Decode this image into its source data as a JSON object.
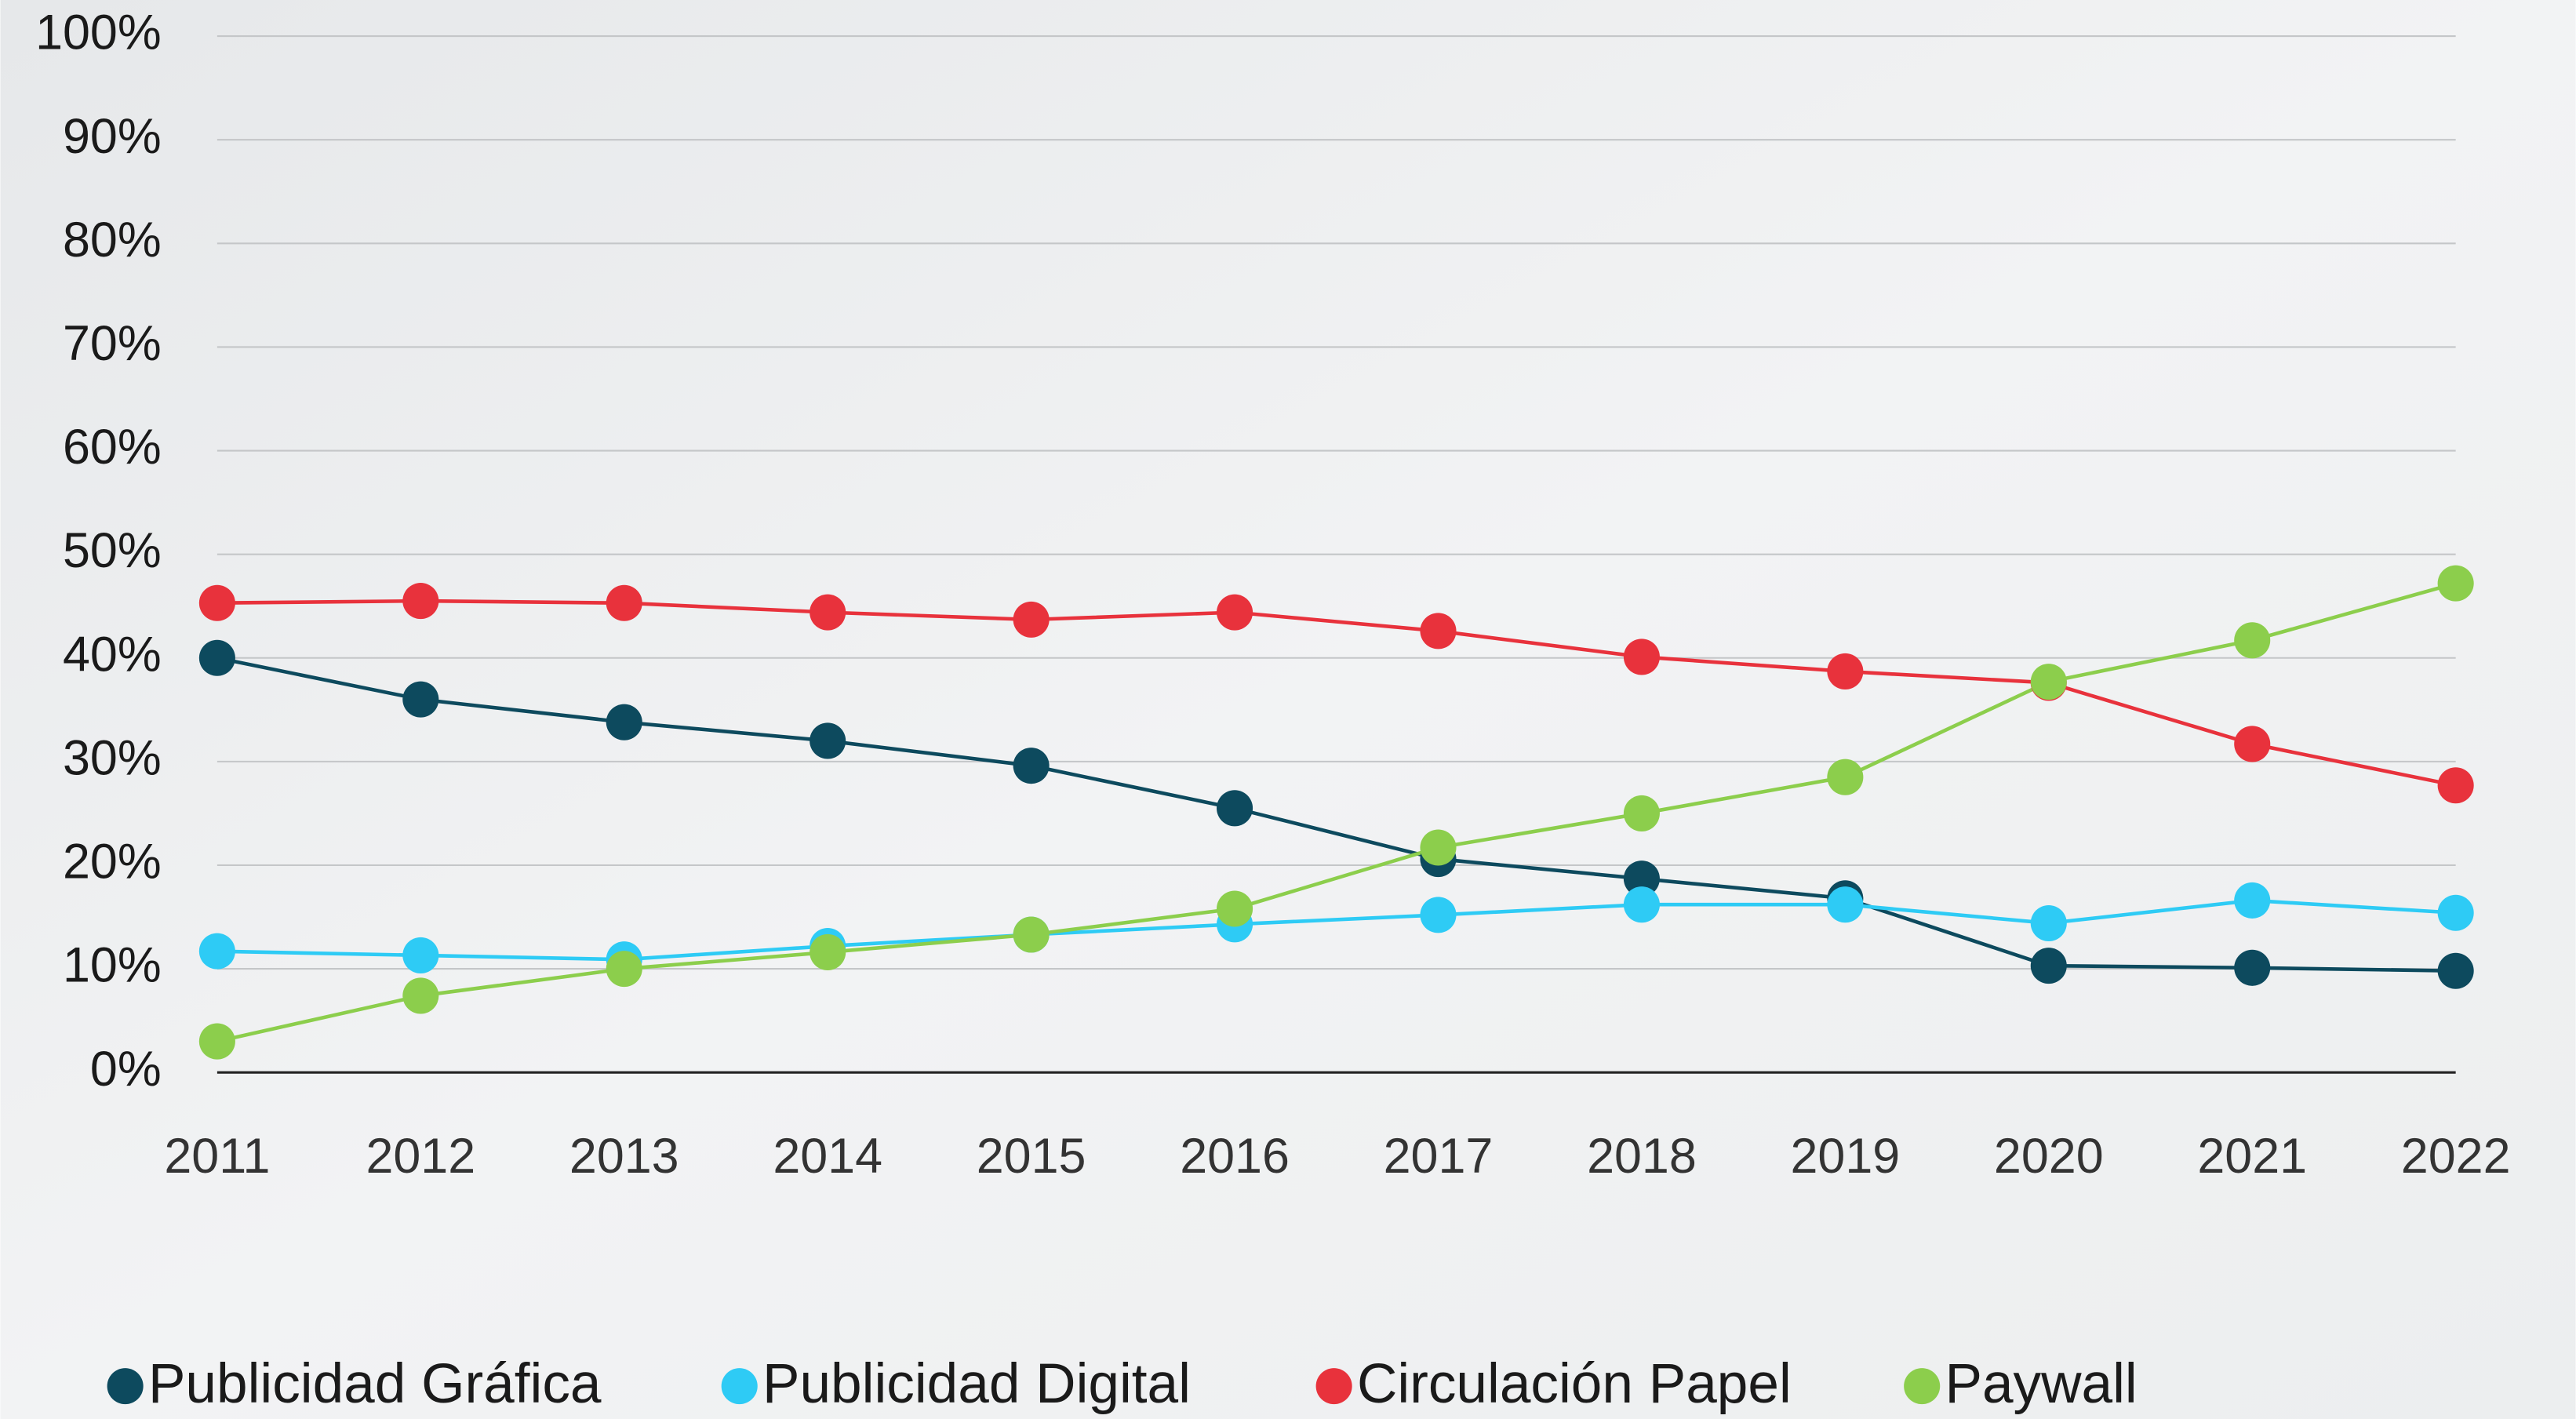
{
  "chart_data": {
    "type": "line",
    "categories": [
      "2011",
      "2012",
      "2013",
      "2014",
      "2015",
      "2016",
      "2017",
      "2018",
      "2019",
      "2020",
      "2021",
      "2022"
    ],
    "series": [
      {
        "name": "Publicidad Gráfica",
        "color": "#0d4a5e",
        "values": [
          40,
          36,
          33.8,
          32,
          29.6,
          25.5,
          20.6,
          18.7,
          16.8,
          10.3,
          10.1,
          9.8
        ]
      },
      {
        "name": "Publicidad Digital",
        "color": "#2ecbf5",
        "values": [
          11.7,
          11.3,
          10.9,
          12.2,
          13.3,
          14.3,
          15.2,
          16.2,
          16.2,
          14.4,
          16.6,
          15.4
        ]
      },
      {
        "name": "Circulación Papel",
        "color": "#e8323c",
        "values": [
          45.3,
          45.5,
          45.3,
          44.4,
          43.7,
          44.4,
          42.6,
          40.1,
          38.7,
          37.6,
          31.7,
          27.7
        ]
      },
      {
        "name": "Paywall",
        "color": "#8cce4c",
        "values": [
          3.0,
          7.4,
          10.0,
          11.6,
          13.3,
          15.8,
          21.7,
          25.0,
          28.5,
          37.7,
          41.7,
          47.2
        ]
      }
    ],
    "ylim": [
      0,
      100
    ],
    "yticks": [
      {
        "value": 0,
        "label": "0%"
      },
      {
        "value": 10,
        "label": "10%"
      },
      {
        "value": 20,
        "label": "20%"
      },
      {
        "value": 30,
        "label": "30%"
      },
      {
        "value": 40,
        "label": "40%"
      },
      {
        "value": 50,
        "label": "50%"
      },
      {
        "value": 60,
        "label": "60%"
      },
      {
        "value": 70,
        "label": "70%"
      },
      {
        "value": 80,
        "label": "80%"
      },
      {
        "value": 90,
        "label": "90%"
      },
      {
        "value": 100,
        "label": "100%"
      }
    ],
    "grid": true,
    "legend": "bottom"
  }
}
